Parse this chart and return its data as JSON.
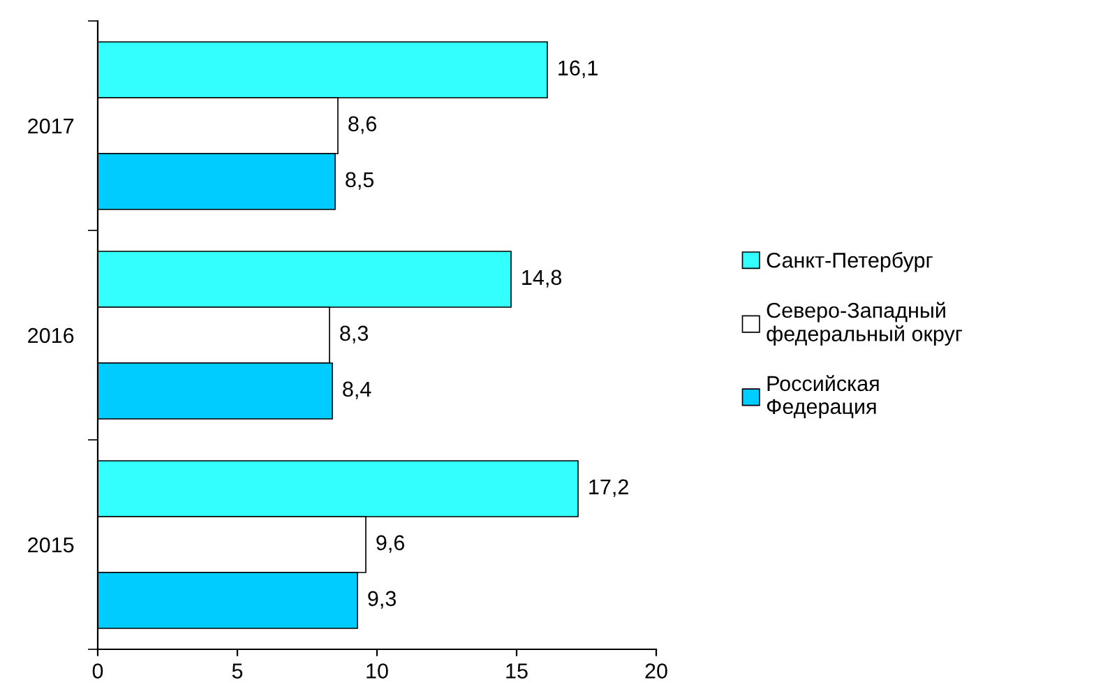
{
  "chart_data": {
    "type": "bar",
    "orientation": "horizontal",
    "categories": [
      "2017",
      "2016",
      "2015"
    ],
    "series": [
      {
        "name": "Санкт-Петербург",
        "color": "#33ffff",
        "values": [
          16.1,
          14.8,
          17.2
        ],
        "value_labels": [
          "16,1",
          "14,8",
          "17,2"
        ]
      },
      {
        "name": "Северо-Западный федеральный округ",
        "color": "#ffffff",
        "values": [
          8.6,
          8.3,
          9.6
        ],
        "value_labels": [
          "8,6",
          "8,3",
          "9,6"
        ]
      },
      {
        "name": "Российская Федерация",
        "color": "#00ccff",
        "values": [
          8.5,
          8.4,
          9.3
        ],
        "value_labels": [
          "8,5",
          "8,4",
          "9,3"
        ]
      }
    ],
    "xlim": [
      0,
      20
    ],
    "xticks": [
      0,
      5,
      10,
      15,
      20
    ],
    "grid": false,
    "legend": "right"
  }
}
